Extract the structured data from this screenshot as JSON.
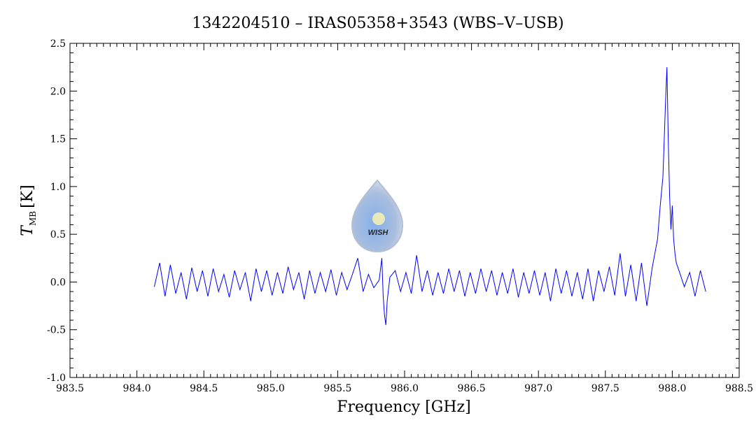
{
  "chart_data": {
    "type": "line",
    "title": "1342204510 – IRAS05358+3543 (WBS–V–USB)",
    "xlabel": "Frequency [GHz]",
    "ylabel": {
      "symbol": "T",
      "subscript": "MB",
      "unit": "[K]"
    },
    "logo_text": "WISH",
    "color": "#0000ff",
    "xlim": [
      983.5,
      988.5
    ],
    "ylim": [
      -1.0,
      2.5
    ],
    "xticks": [
      983.5,
      {
        "value": 984,
        "label": "984.0"
      },
      984.5,
      {
        "value": 985,
        "label": "985.0"
      },
      985.5,
      {
        "value": 986,
        "label": "986.0"
      },
      986.5,
      {
        "value": 987,
        "label": "987.0"
      },
      987.5,
      {
        "value": 988,
        "label": "988.0"
      },
      988.5
    ],
    "yticks": [
      {
        "value": -1,
        "label": "-1.0"
      },
      -0.5,
      {
        "value": 0,
        "label": "0.0"
      },
      0.5,
      {
        "value": 1,
        "label": "1.0"
      },
      1.5,
      {
        "value": 2,
        "label": "2.0"
      },
      2.5
    ],
    "x": [
      984.13,
      984.17,
      984.21,
      984.25,
      984.29,
      984.33,
      984.37,
      984.41,
      984.45,
      984.49,
      984.53,
      984.57,
      984.61,
      984.65,
      984.69,
      984.73,
      984.77,
      984.81,
      984.85,
      984.89,
      984.93,
      984.97,
      985.01,
      985.05,
      985.09,
      985.13,
      985.17,
      985.21,
      985.25,
      985.29,
      985.33,
      985.37,
      985.41,
      985.45,
      985.49,
      985.53,
      985.57,
      985.61,
      985.65,
      985.69,
      985.73,
      985.77,
      985.81,
      985.83,
      985.84,
      985.85,
      985.86,
      985.87,
      985.89,
      985.93,
      985.97,
      986.01,
      986.05,
      986.09,
      986.13,
      986.17,
      986.21,
      986.25,
      986.29,
      986.33,
      986.37,
      986.41,
      986.45,
      986.49,
      986.53,
      986.57,
      986.61,
      986.65,
      986.69,
      986.73,
      986.77,
      986.81,
      986.85,
      986.89,
      986.93,
      986.97,
      987.01,
      987.05,
      987.09,
      987.13,
      987.17,
      987.21,
      987.25,
      987.29,
      987.33,
      987.37,
      987.41,
      987.45,
      987.49,
      987.53,
      987.57,
      987.61,
      987.65,
      987.69,
      987.73,
      987.77,
      987.81,
      987.85,
      987.87,
      987.89,
      987.91,
      987.93,
      987.95,
      987.96,
      987.97,
      987.98,
      987.99,
      988.0,
      988.01,
      988.02,
      988.03,
      988.05,
      988.09,
      988.13,
      988.17,
      988.21,
      988.25
    ],
    "values": [
      -0.05,
      0.2,
      -0.15,
      0.18,
      -0.12,
      0.1,
      -0.18,
      0.15,
      -0.1,
      0.12,
      -0.15,
      0.14,
      -0.1,
      0.08,
      -0.16,
      0.12,
      -0.08,
      0.1,
      -0.2,
      0.14,
      -0.1,
      0.12,
      -0.14,
      0.1,
      -0.12,
      0.16,
      -0.08,
      0.1,
      -0.18,
      0.12,
      -0.12,
      0.1,
      -0.1,
      0.13,
      -0.14,
      0.1,
      -0.08,
      0.08,
      0.25,
      -0.1,
      0.08,
      -0.06,
      0.02,
      0.25,
      -0.15,
      -0.35,
      -0.45,
      -0.2,
      0.05,
      0.12,
      -0.1,
      0.1,
      -0.12,
      0.28,
      -0.1,
      0.12,
      -0.14,
      0.1,
      -0.12,
      0.14,
      -0.1,
      0.12,
      -0.15,
      0.1,
      -0.12,
      0.14,
      -0.1,
      0.12,
      -0.14,
      0.1,
      -0.12,
      0.14,
      -0.16,
      0.1,
      -0.12,
      0.12,
      -0.14,
      0.1,
      -0.2,
      0.14,
      -0.12,
      0.12,
      -0.15,
      0.1,
      -0.18,
      0.14,
      -0.2,
      0.12,
      -0.1,
      0.16,
      -0.14,
      0.3,
      -0.15,
      0.18,
      -0.2,
      0.2,
      -0.25,
      0.15,
      0.3,
      0.45,
      0.8,
      1.1,
      1.9,
      2.25,
      1.5,
      0.9,
      0.55,
      0.8,
      0.45,
      0.3,
      0.2,
      0.12,
      -0.05,
      0.1,
      -0.15,
      0.12,
      -0.1
    ]
  }
}
